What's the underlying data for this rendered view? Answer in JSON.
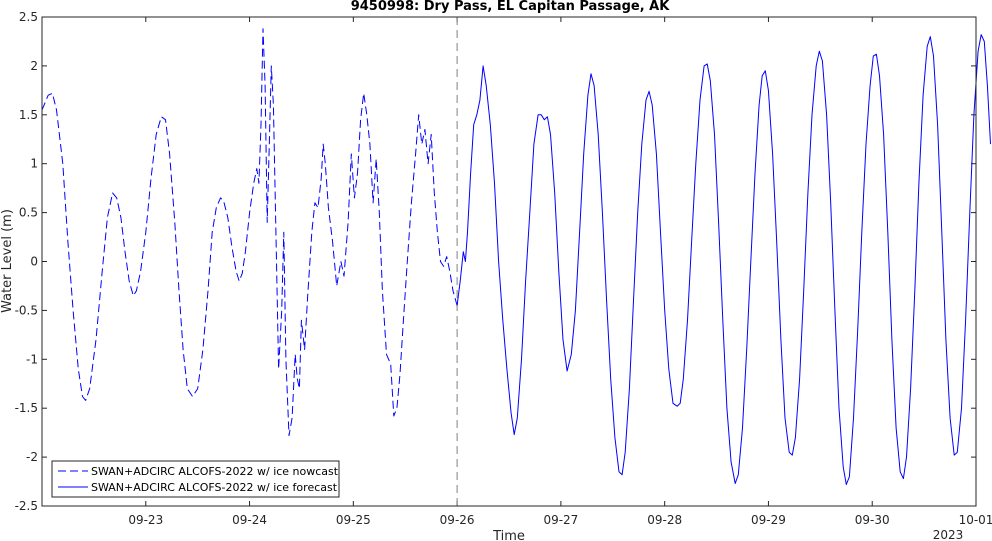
{
  "chart_data": {
    "type": "line",
    "title": "9450998: Dry Pass, EL Capitan Passage, AK",
    "xlabel": "Time",
    "ylabel": "Water Level (m)",
    "xlim": [
      0,
      9.0
    ],
    "ylim": [
      -2.5,
      2.5
    ],
    "yticks": [
      -2.5,
      -2,
      -1.5,
      -1,
      -0.5,
      0,
      0.5,
      1,
      1.5,
      2,
      2.5
    ],
    "ytick_labels": [
      "-2.5",
      "-2",
      "-1.5",
      "-1",
      "-0.5",
      "0",
      "0.5",
      "1",
      "1.5",
      "2",
      "2.5"
    ],
    "xticks": [
      1,
      2,
      3,
      4,
      5,
      6,
      7,
      8,
      9
    ],
    "xtick_labels": [
      "09-23",
      "09-24",
      "09-25",
      "09-26",
      "09-27",
      "09-28",
      "09-29",
      "09-30",
      "10-01"
    ],
    "x_secondary_label": "2023",
    "x_units": "days since 09-22 00:00",
    "nowcast_forecast_boundary_x": 4.0,
    "legend_position": "bottom-left",
    "series": [
      {
        "name": "SWAN+ADCIRC ALCOFS-2022 w/ ice nowcast",
        "style": "dashed",
        "color": "#0000ff",
        "points": [
          [
            0.0,
            1.55
          ],
          [
            0.06,
            1.7
          ],
          [
            0.1,
            1.72
          ],
          [
            0.14,
            1.55
          ],
          [
            0.2,
            1.0
          ],
          [
            0.25,
            0.2
          ],
          [
            0.3,
            -0.5
          ],
          [
            0.35,
            -1.1
          ],
          [
            0.39,
            -1.38
          ],
          [
            0.42,
            -1.42
          ],
          [
            0.46,
            -1.3
          ],
          [
            0.52,
            -0.8
          ],
          [
            0.58,
            -0.1
          ],
          [
            0.63,
            0.45
          ],
          [
            0.68,
            0.7
          ],
          [
            0.72,
            0.65
          ],
          [
            0.76,
            0.45
          ],
          [
            0.8,
            0.1
          ],
          [
            0.84,
            -0.2
          ],
          [
            0.88,
            -0.35
          ],
          [
            0.91,
            -0.3
          ],
          [
            0.95,
            -0.1
          ],
          [
            1.0,
            0.3
          ],
          [
            1.05,
            0.85
          ],
          [
            1.1,
            1.3
          ],
          [
            1.15,
            1.48
          ],
          [
            1.19,
            1.45
          ],
          [
            1.23,
            1.1
          ],
          [
            1.28,
            0.4
          ],
          [
            1.32,
            -0.3
          ],
          [
            1.36,
            -0.9
          ],
          [
            1.4,
            -1.3
          ],
          [
            1.45,
            -1.38
          ],
          [
            1.5,
            -1.3
          ],
          [
            1.55,
            -0.9
          ],
          [
            1.6,
            -0.3
          ],
          [
            1.64,
            0.3
          ],
          [
            1.68,
            0.55
          ],
          [
            1.72,
            0.65
          ],
          [
            1.75,
            0.62
          ],
          [
            1.79,
            0.45
          ],
          [
            1.83,
            0.15
          ],
          [
            1.87,
            -0.1
          ],
          [
            1.9,
            -0.2
          ],
          [
            1.93,
            -0.12
          ],
          [
            1.96,
            0.1
          ],
          [
            2.0,
            0.5
          ],
          [
            2.04,
            0.8
          ],
          [
            2.07,
            0.95
          ],
          [
            2.09,
            0.8
          ],
          [
            2.11,
            1.4
          ],
          [
            2.13,
            2.38
          ],
          [
            2.15,
            1.8
          ],
          [
            2.17,
            0.4
          ],
          [
            2.19,
            1.2
          ],
          [
            2.21,
            2.0
          ],
          [
            2.23,
            1.6
          ],
          [
            2.26,
            0.0
          ],
          [
            2.28,
            -1.1
          ],
          [
            2.31,
            -0.5
          ],
          [
            2.33,
            0.3
          ],
          [
            2.35,
            -1.0
          ],
          [
            2.38,
            -1.78
          ],
          [
            2.41,
            -1.6
          ],
          [
            2.44,
            -0.95
          ],
          [
            2.46,
            -1.2
          ],
          [
            2.48,
            -1.3
          ],
          [
            2.5,
            -0.6
          ],
          [
            2.53,
            -0.9
          ],
          [
            2.56,
            -0.35
          ],
          [
            2.6,
            0.3
          ],
          [
            2.63,
            0.6
          ],
          [
            2.66,
            0.55
          ],
          [
            2.69,
            0.85
          ],
          [
            2.71,
            1.2
          ],
          [
            2.73,
            1.0
          ],
          [
            2.76,
            0.55
          ],
          [
            2.8,
            0.2
          ],
          [
            2.84,
            -0.25
          ],
          [
            2.88,
            0.0
          ],
          [
            2.91,
            -0.15
          ],
          [
            2.95,
            0.4
          ],
          [
            2.98,
            1.1
          ],
          [
            3.01,
            0.65
          ],
          [
            3.04,
            0.9
          ],
          [
            3.07,
            1.45
          ],
          [
            3.1,
            1.72
          ],
          [
            3.13,
            1.5
          ],
          [
            3.16,
            1.2
          ],
          [
            3.19,
            0.6
          ],
          [
            3.22,
            1.05
          ],
          [
            3.25,
            0.5
          ],
          [
            3.28,
            -0.3
          ],
          [
            3.32,
            -0.95
          ],
          [
            3.36,
            -1.05
          ],
          [
            3.39,
            -1.58
          ],
          [
            3.42,
            -1.5
          ],
          [
            3.45,
            -1.15
          ],
          [
            3.48,
            -0.65
          ],
          [
            3.52,
            0.0
          ],
          [
            3.56,
            0.6
          ],
          [
            3.6,
            1.1
          ],
          [
            3.63,
            1.5
          ],
          [
            3.66,
            1.2
          ],
          [
            3.69,
            1.35
          ],
          [
            3.72,
            1.0
          ],
          [
            3.75,
            1.3
          ],
          [
            3.78,
            0.7
          ],
          [
            3.81,
            0.3
          ],
          [
            3.84,
            0.0
          ],
          [
            3.87,
            -0.05
          ],
          [
            3.9,
            0.05
          ],
          [
            3.93,
            -0.1
          ],
          [
            3.96,
            -0.3
          ],
          [
            4.0,
            -0.45
          ]
        ]
      },
      {
        "name": "SWAN+ADCIRC ALCOFS-2022 w/ ice forecast",
        "style": "solid",
        "color": "#0000ff",
        "points": [
          [
            4.0,
            -0.45
          ],
          [
            4.03,
            -0.2
          ],
          [
            4.06,
            0.1
          ],
          [
            4.08,
            0.0
          ],
          [
            4.1,
            0.3
          ],
          [
            4.13,
            0.9
          ],
          [
            4.16,
            1.4
          ],
          [
            4.19,
            1.5
          ],
          [
            4.22,
            1.65
          ],
          [
            4.25,
            2.0
          ],
          [
            4.28,
            1.8
          ],
          [
            4.32,
            1.4
          ],
          [
            4.36,
            0.8
          ],
          [
            4.4,
            0.0
          ],
          [
            4.44,
            -0.6
          ],
          [
            4.48,
            -1.1
          ],
          [
            4.52,
            -1.55
          ],
          [
            4.55,
            -1.77
          ],
          [
            4.58,
            -1.6
          ],
          [
            4.62,
            -1.0
          ],
          [
            4.66,
            -0.2
          ],
          [
            4.7,
            0.5
          ],
          [
            4.74,
            1.2
          ],
          [
            4.78,
            1.5
          ],
          [
            4.81,
            1.5
          ],
          [
            4.84,
            1.45
          ],
          [
            4.87,
            1.48
          ],
          [
            4.9,
            1.3
          ],
          [
            4.94,
            0.7
          ],
          [
            4.98,
            -0.1
          ],
          [
            5.02,
            -0.8
          ],
          [
            5.06,
            -1.12
          ],
          [
            5.1,
            -0.95
          ],
          [
            5.14,
            -0.5
          ],
          [
            5.18,
            0.3
          ],
          [
            5.22,
            1.1
          ],
          [
            5.26,
            1.7
          ],
          [
            5.29,
            1.92
          ],
          [
            5.32,
            1.8
          ],
          [
            5.36,
            1.3
          ],
          [
            5.4,
            0.5
          ],
          [
            5.44,
            -0.4
          ],
          [
            5.48,
            -1.2
          ],
          [
            5.52,
            -1.8
          ],
          [
            5.56,
            -2.15
          ],
          [
            5.59,
            -2.18
          ],
          [
            5.62,
            -1.95
          ],
          [
            5.66,
            -1.3
          ],
          [
            5.7,
            -0.4
          ],
          [
            5.74,
            0.5
          ],
          [
            5.78,
            1.2
          ],
          [
            5.82,
            1.65
          ],
          [
            5.85,
            1.74
          ],
          [
            5.88,
            1.6
          ],
          [
            5.92,
            1.1
          ],
          [
            5.96,
            0.3
          ],
          [
            6.0,
            -0.5
          ],
          [
            6.04,
            -1.1
          ],
          [
            6.08,
            -1.45
          ],
          [
            6.12,
            -1.48
          ],
          [
            6.15,
            -1.45
          ],
          [
            6.18,
            -1.2
          ],
          [
            6.22,
            -0.6
          ],
          [
            6.26,
            0.2
          ],
          [
            6.3,
            1.0
          ],
          [
            6.34,
            1.65
          ],
          [
            6.38,
            2.0
          ],
          [
            6.41,
            2.02
          ],
          [
            6.44,
            1.85
          ],
          [
            6.48,
            1.3
          ],
          [
            6.52,
            0.4
          ],
          [
            6.56,
            -0.6
          ],
          [
            6.6,
            -1.5
          ],
          [
            6.64,
            -2.05
          ],
          [
            6.68,
            -2.27
          ],
          [
            6.71,
            -2.18
          ],
          [
            6.75,
            -1.7
          ],
          [
            6.79,
            -0.9
          ],
          [
            6.83,
            0.0
          ],
          [
            6.87,
            0.9
          ],
          [
            6.91,
            1.6
          ],
          [
            6.94,
            1.9
          ],
          [
            6.97,
            1.95
          ],
          [
            7.0,
            1.75
          ],
          [
            7.04,
            1.1
          ],
          [
            7.08,
            0.2
          ],
          [
            7.12,
            -0.8
          ],
          [
            7.16,
            -1.6
          ],
          [
            7.2,
            -1.95
          ],
          [
            7.23,
            -1.98
          ],
          [
            7.26,
            -1.8
          ],
          [
            7.3,
            -1.2
          ],
          [
            7.34,
            -0.3
          ],
          [
            7.38,
            0.7
          ],
          [
            7.42,
            1.5
          ],
          [
            7.46,
            2.0
          ],
          [
            7.49,
            2.15
          ],
          [
            7.52,
            2.05
          ],
          [
            7.56,
            1.5
          ],
          [
            7.6,
            0.6
          ],
          [
            7.64,
            -0.5
          ],
          [
            7.68,
            -1.5
          ],
          [
            7.72,
            -2.1
          ],
          [
            7.75,
            -2.28
          ],
          [
            7.78,
            -2.2
          ],
          [
            7.82,
            -1.6
          ],
          [
            7.86,
            -0.7
          ],
          [
            7.9,
            0.3
          ],
          [
            7.94,
            1.2
          ],
          [
            7.98,
            1.8
          ],
          [
            8.01,
            2.1
          ],
          [
            8.04,
            2.12
          ],
          [
            8.07,
            1.9
          ],
          [
            8.11,
            1.3
          ],
          [
            8.15,
            0.3
          ],
          [
            8.19,
            -0.8
          ],
          [
            8.23,
            -1.7
          ],
          [
            8.27,
            -2.15
          ],
          [
            8.3,
            -2.22
          ],
          [
            8.33,
            -2.0
          ],
          [
            8.37,
            -1.3
          ],
          [
            8.41,
            -0.3
          ],
          [
            8.45,
            0.8
          ],
          [
            8.49,
            1.7
          ],
          [
            8.53,
            2.2
          ],
          [
            8.56,
            2.3
          ],
          [
            8.59,
            2.1
          ],
          [
            8.63,
            1.4
          ],
          [
            8.67,
            0.3
          ],
          [
            8.71,
            -0.8
          ],
          [
            8.75,
            -1.6
          ],
          [
            8.79,
            -1.98
          ],
          [
            8.82,
            -1.95
          ],
          [
            8.86,
            -1.5
          ],
          [
            8.9,
            -0.6
          ],
          [
            8.94,
            0.5
          ],
          [
            8.98,
            1.5
          ],
          [
            9.02,
            2.15
          ],
          [
            9.05,
            2.32
          ],
          [
            9.08,
            2.25
          ],
          [
            9.11,
            1.8
          ],
          [
            9.14,
            1.2
          ]
        ]
      }
    ]
  }
}
